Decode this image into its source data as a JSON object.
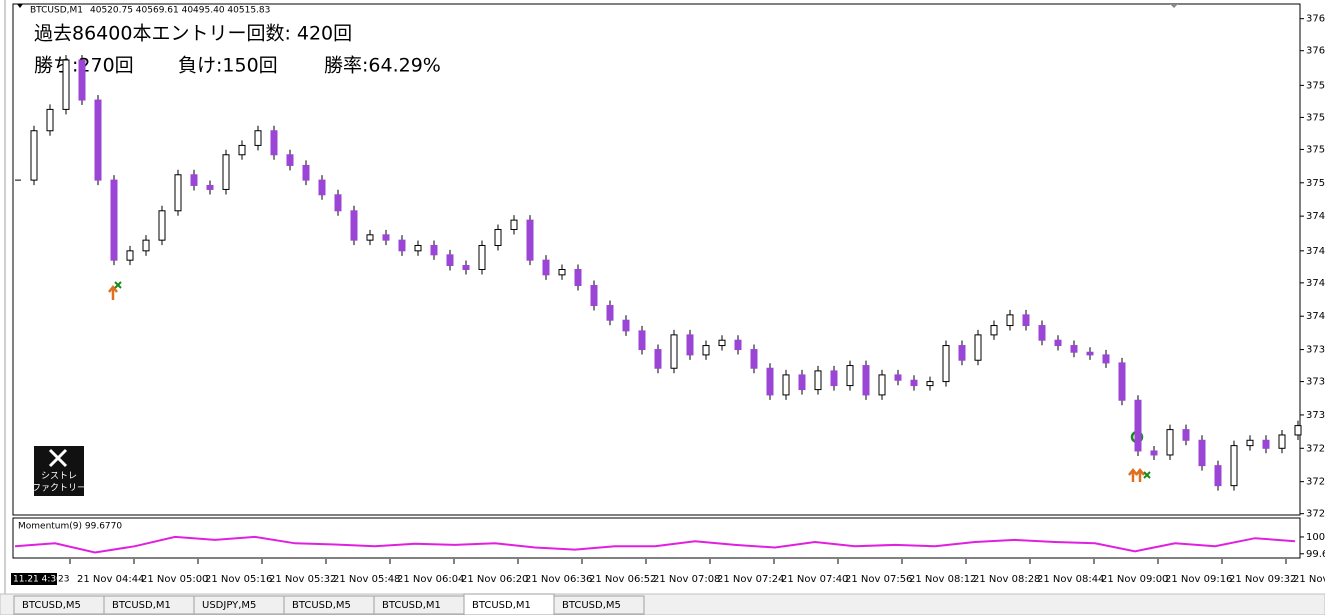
{
  "window": {
    "symbol": "BTCUSD,M1",
    "ohlc": "40520.75 40569.61 40495.40 40515.83"
  },
  "overlay": {
    "line1": "過去86400本エントリー回数: 420回",
    "wins": "勝ち:270回",
    "losses": "負け:150回",
    "rate": "勝率:64.29%"
  },
  "logo": {
    "line1": "シストレ",
    "line2": "ファクトリー"
  },
  "chart_data": {
    "type": "candlestick",
    "values": [
      37501,
      37538,
      37554,
      37591,
      37561,
      37501,
      37441,
      37448,
      37456,
      37478,
      37505,
      37497,
      37494,
      37520,
      37527,
      37538,
      37520,
      37512,
      37501,
      37490,
      37478,
      37456,
      37460,
      37456,
      37448,
      37452,
      37445,
      37437,
      37434,
      37452,
      37464,
      37471,
      37441,
      37430,
      37434,
      37422,
      37407,
      37396,
      37388,
      37374,
      37360,
      37385,
      37370,
      37377,
      37381,
      37374,
      37360,
      37340,
      37355,
      37344,
      37358,
      37347,
      37362,
      37340,
      37355,
      37351,
      37347,
      37350,
      37377,
      37366,
      37385,
      37392,
      37400,
      37392,
      37381,
      37377,
      37372,
      37370,
      37364,
      37336,
      37298,
      37295,
      37314,
      37306,
      37287,
      37272,
      37302,
      37306,
      37300,
      37310,
      37317
    ],
    "up_color": "#ffffff",
    "down_color": "#9b45d6",
    "ylim": [
      37250,
      37630
    ],
    "yticks": [
      {
        "value": 37622,
        "label": "376"
      },
      {
        "value": 37598,
        "label": "376"
      },
      {
        "value": 37572,
        "label": "375"
      },
      {
        "value": 37548,
        "label": "375"
      },
      {
        "value": 37524,
        "label": "375"
      },
      {
        "value": 37499,
        "label": "375"
      },
      {
        "value": 37474,
        "label": "374"
      },
      {
        "value": 37448,
        "label": "374"
      },
      {
        "value": 37424,
        "label": "374"
      },
      {
        "value": 37399,
        "label": "374"
      },
      {
        "value": 37374,
        "label": "373"
      },
      {
        "value": 37350,
        "label": "373"
      },
      {
        "value": 37325,
        "label": "373"
      },
      {
        "value": 37300,
        "label": "372"
      },
      {
        "value": 37275,
        "label": "372"
      },
      {
        "value": 37251,
        "label": "372"
      }
    ]
  },
  "momentum": {
    "label": "Momentum(9) 99.6770",
    "color": "#e020e0",
    "values": [
      99.78,
      99.85,
      99.63,
      99.78,
      100.0,
      99.93,
      100.0,
      99.85,
      99.82,
      99.78,
      99.84,
      99.81,
      99.85,
      99.75,
      99.7,
      99.78,
      99.78,
      99.9,
      99.81,
      99.75,
      99.88,
      99.78,
      99.81,
      99.78,
      99.88,
      99.93,
      99.88,
      99.85,
      99.66,
      99.85,
      99.78,
      99.97,
      99.9
    ],
    "ylim": [
      99.5,
      100.45
    ],
    "yticks": [
      {
        "value": 100,
        "label": "100."
      },
      99.6
    ]
  },
  "time_axis": {
    "cursor": "11.21 4:30",
    "partial": "23",
    "labels": [
      "21 Nov 04:44",
      "21 Nov 05:00",
      "21 Nov 05:16",
      "21 Nov 05:32",
      "21 Nov 05:48",
      "21 Nov 06:04",
      "21 Nov 06:20",
      "21 Nov 06:36",
      "21 Nov 06:52",
      "21 Nov 07:08",
      "21 Nov 07:24",
      "21 Nov 07:40",
      "21 Nov 07:56",
      "21 Nov 08:12",
      "21 Nov 08:28",
      "21 Nov 08:44",
      "21 Nov 09:00",
      "21 Nov 09:16",
      "21 Nov 09:32",
      "21 Nov"
    ]
  },
  "tabs": [
    "BTCUSD,M5",
    "BTCUSD,M1",
    "USDJPY,M5",
    "BTCUSD,M5",
    "BTCUSD,M1",
    "BTCUSD,M1",
    "BTCUSD,M5"
  ],
  "active_tab": 5
}
